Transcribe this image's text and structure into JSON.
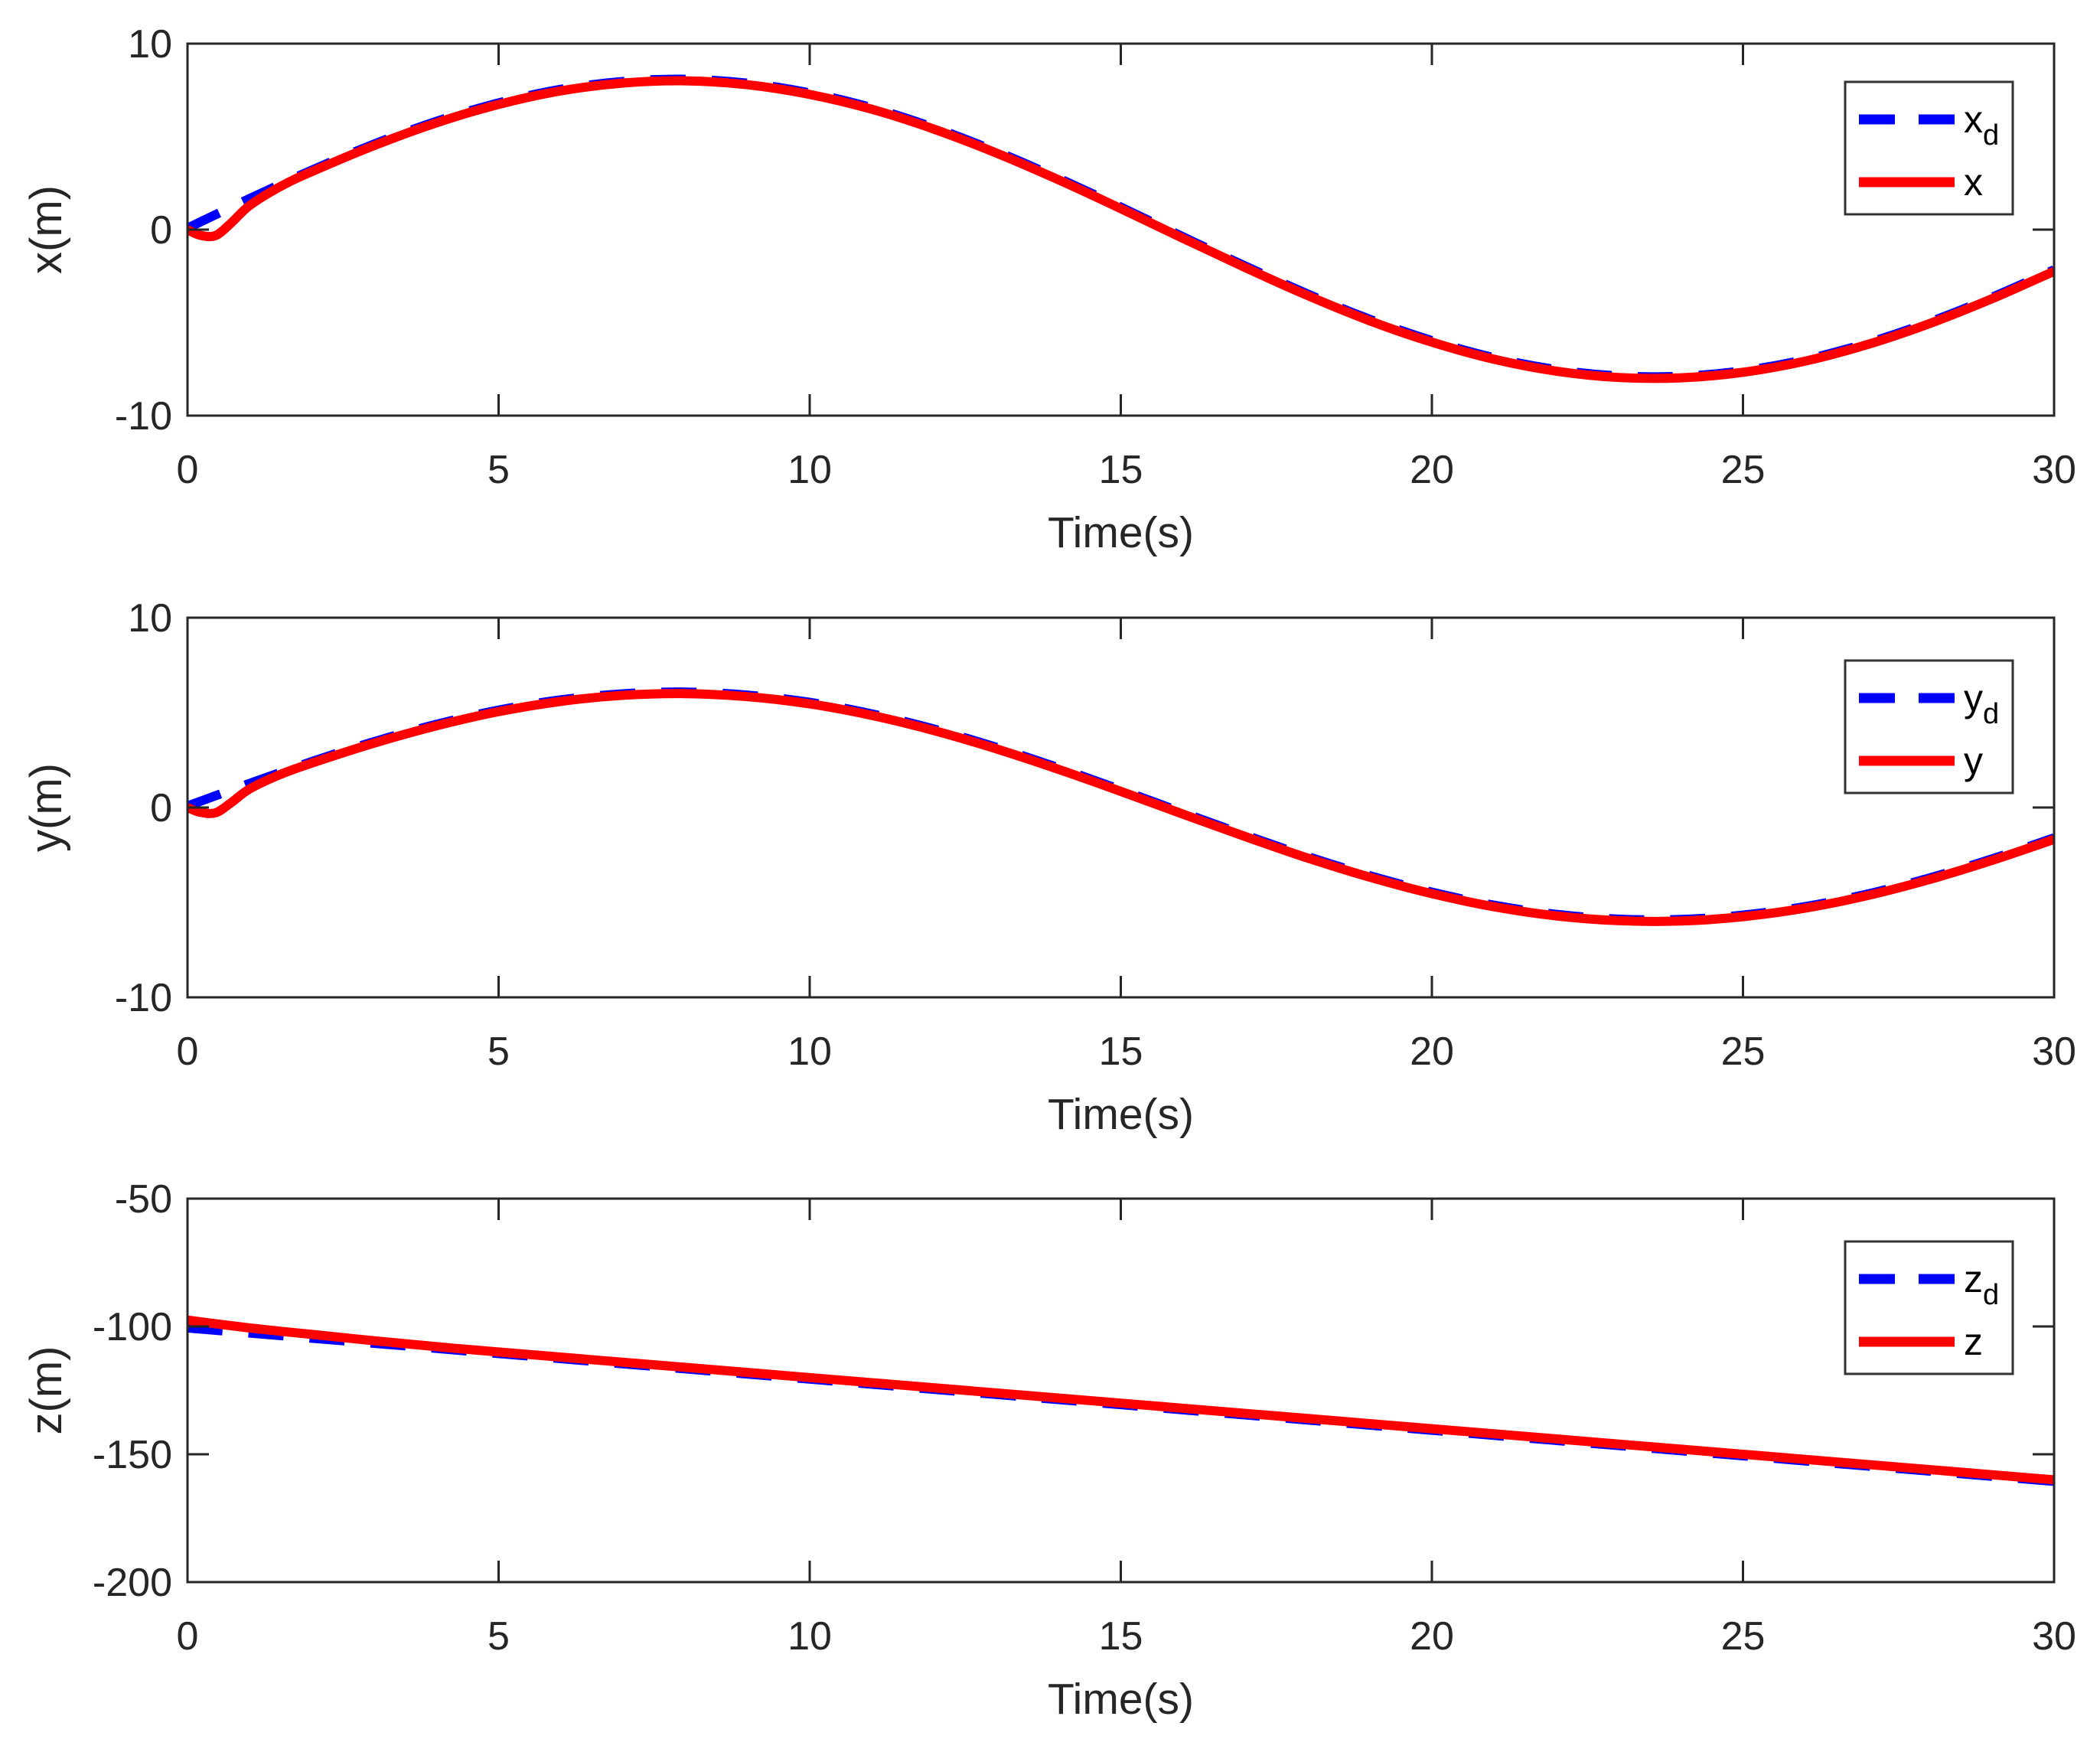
{
  "figure": {
    "background": "#FFFFFF",
    "description": "Position tracking: desired vs actual trajectories in x, y, z over time"
  },
  "colors": {
    "desired_line": "#0000FF",
    "actual_line": "#FF0000",
    "axis": "#262626",
    "legend_border": "#333333",
    "label_text": "#262626"
  },
  "chart_data": [
    {
      "type": "line",
      "id": "x",
      "xlabel": "Time(s)",
      "ylabel": "x(m)",
      "xlim": [
        0,
        30
      ],
      "ylim": [
        -10,
        10
      ],
      "xticks": [
        0,
        5,
        10,
        15,
        20,
        25,
        30
      ],
      "xtick_labels": [
        "0",
        "5",
        "10",
        "15",
        "20",
        "25",
        "30"
      ],
      "yticks": [
        10,
        0,
        -10
      ],
      "ytick_labels": [
        "10",
        "0",
        "-10"
      ],
      "grid": false,
      "legend_position": "northeast-inset",
      "legend": [
        {
          "label": "x",
          "subscript": "d",
          "color": "#0000FF",
          "style": "dashed"
        },
        {
          "label": "x",
          "subscript": "",
          "color": "#FF0000",
          "style": "solid"
        }
      ],
      "series": [
        {
          "name": "x_d",
          "color": "#0000FF",
          "style": "dashed",
          "points": [
            [
              0,
              0
            ],
            [
              1,
              1.59
            ],
            [
              2,
              3.12
            ],
            [
              3,
              4.52
            ],
            [
              4,
              5.74
            ],
            [
              5,
              6.73
            ],
            [
              6,
              7.46
            ],
            [
              7,
              7.88
            ],
            [
              8,
              8.0
            ],
            [
              9,
              7.79
            ],
            [
              10,
              7.27
            ],
            [
              11,
              6.47
            ],
            [
              12,
              5.4
            ],
            [
              13,
              4.12
            ],
            [
              14,
              2.68
            ],
            [
              15,
              1.13
            ],
            [
              16,
              -0.47
            ],
            [
              17,
              -2.04
            ],
            [
              18,
              -3.54
            ],
            [
              19,
              -4.9
            ],
            [
              20,
              -6.05
            ],
            [
              21,
              -6.97
            ],
            [
              22,
              -7.61
            ],
            [
              23,
              -7.95
            ],
            [
              24,
              -7.97
            ],
            [
              25,
              -7.67
            ],
            [
              26,
              -7.07
            ],
            [
              27,
              -6.18
            ],
            [
              28,
              -5.05
            ],
            [
              29,
              -3.72
            ],
            [
              30,
              -2.24
            ]
          ]
        },
        {
          "name": "x",
          "color": "#FF0000",
          "style": "solid",
          "points": [
            [
              0,
              0
            ],
            [
              0.2,
              -0.3
            ],
            [
              0.45,
              -0.32
            ],
            [
              0.7,
              0.35
            ],
            [
              1,
              1.3
            ],
            [
              1.5,
              2.33
            ],
            [
              2,
              3.12
            ],
            [
              3,
              4.52
            ],
            [
              4,
              5.74
            ],
            [
              5,
              6.73
            ],
            [
              6,
              7.46
            ],
            [
              7,
              7.88
            ],
            [
              8,
              8.0
            ],
            [
              9,
              7.79
            ],
            [
              10,
              7.27
            ],
            [
              11,
              6.47
            ],
            [
              12,
              5.4
            ],
            [
              13,
              4.12
            ],
            [
              14,
              2.68
            ],
            [
              15,
              1.13
            ],
            [
              16,
              -0.47
            ],
            [
              17,
              -2.04
            ],
            [
              18,
              -3.54
            ],
            [
              19,
              -4.9
            ],
            [
              20,
              -6.05
            ],
            [
              21,
              -6.97
            ],
            [
              22,
              -7.61
            ],
            [
              23,
              -7.95
            ],
            [
              24,
              -7.97
            ],
            [
              25,
              -7.67
            ],
            [
              26,
              -7.07
            ],
            [
              27,
              -6.18
            ],
            [
              28,
              -5.05
            ],
            [
              29,
              -3.72
            ],
            [
              30,
              -2.24
            ]
          ]
        }
      ]
    },
    {
      "type": "line",
      "id": "y",
      "xlabel": "Time(s)",
      "ylabel": "y(m)",
      "xlim": [
        0,
        30
      ],
      "ylim": [
        -10,
        10
      ],
      "xticks": [
        0,
        5,
        10,
        15,
        20,
        25,
        30
      ],
      "xtick_labels": [
        "0",
        "5",
        "10",
        "15",
        "20",
        "25",
        "30"
      ],
      "yticks": [
        10,
        0,
        -10
      ],
      "ytick_labels": [
        "10",
        "0",
        "-10"
      ],
      "grid": false,
      "legend_position": "northeast-inset",
      "legend": [
        {
          "label": "y",
          "subscript": "d",
          "color": "#0000FF",
          "style": "dashed"
        },
        {
          "label": "y",
          "subscript": "",
          "color": "#FF0000",
          "style": "solid"
        }
      ],
      "series": [
        {
          "name": "y_d",
          "color": "#0000FF",
          "style": "dashed",
          "points": [
            [
              0,
              0
            ],
            [
              1,
              1.19
            ],
            [
              2,
              2.34
            ],
            [
              3,
              3.39
            ],
            [
              4,
              4.3
            ],
            [
              5,
              5.05
            ],
            [
              6,
              5.59
            ],
            [
              7,
              5.91
            ],
            [
              8,
              6.0
            ],
            [
              9,
              5.84
            ],
            [
              10,
              5.46
            ],
            [
              11,
              4.85
            ],
            [
              12,
              4.05
            ],
            [
              13,
              3.09
            ],
            [
              14,
              2.01
            ],
            [
              15,
              0.85
            ],
            [
              16,
              -0.35
            ],
            [
              17,
              -1.53
            ],
            [
              18,
              -2.66
            ],
            [
              19,
              -3.67
            ],
            [
              20,
              -4.54
            ],
            [
              21,
              -5.23
            ],
            [
              22,
              -5.71
            ],
            [
              23,
              -5.96
            ],
            [
              24,
              -5.98
            ],
            [
              25,
              -5.75
            ],
            [
              26,
              -5.3
            ],
            [
              27,
              -4.64
            ],
            [
              28,
              -3.79
            ],
            [
              29,
              -2.79
            ],
            [
              30,
              -1.68
            ]
          ]
        },
        {
          "name": "y",
          "color": "#FF0000",
          "style": "solid",
          "points": [
            [
              0,
              0
            ],
            [
              0.2,
              -0.25
            ],
            [
              0.45,
              -0.28
            ],
            [
              0.7,
              0.25
            ],
            [
              1,
              0.98
            ],
            [
              1.5,
              1.75
            ],
            [
              2,
              2.34
            ],
            [
              3,
              3.39
            ],
            [
              4,
              4.3
            ],
            [
              5,
              5.05
            ],
            [
              6,
              5.59
            ],
            [
              7,
              5.91
            ],
            [
              8,
              6.0
            ],
            [
              9,
              5.84
            ],
            [
              10,
              5.46
            ],
            [
              11,
              4.85
            ],
            [
              12,
              4.05
            ],
            [
              13,
              3.09
            ],
            [
              14,
              2.01
            ],
            [
              15,
              0.85
            ],
            [
              16,
              -0.35
            ],
            [
              17,
              -1.53
            ],
            [
              18,
              -2.66
            ],
            [
              19,
              -3.67
            ],
            [
              20,
              -4.54
            ],
            [
              21,
              -5.23
            ],
            [
              22,
              -5.71
            ],
            [
              23,
              -5.96
            ],
            [
              24,
              -5.98
            ],
            [
              25,
              -5.75
            ],
            [
              26,
              -5.3
            ],
            [
              27,
              -4.64
            ],
            [
              28,
              -3.79
            ],
            [
              29,
              -2.79
            ],
            [
              30,
              -1.68
            ]
          ]
        }
      ]
    },
    {
      "type": "line",
      "id": "z",
      "xlabel": "Time(s)",
      "ylabel": "z(m)",
      "xlim": [
        0,
        30
      ],
      "ylim": [
        -200,
        -50
      ],
      "xticks": [
        0,
        5,
        10,
        15,
        20,
        25,
        30
      ],
      "xtick_labels": [
        "0",
        "5",
        "10",
        "15",
        "20",
        "25",
        "30"
      ],
      "yticks": [
        -50,
        -100,
        -150,
        -200
      ],
      "ytick_labels": [
        "-50",
        "-100",
        "-150",
        "-200"
      ],
      "grid": false,
      "legend_position": "northeast-inset",
      "legend": [
        {
          "label": "z",
          "subscript": "d",
          "color": "#0000FF",
          "style": "dashed"
        },
        {
          "label": "z",
          "subscript": "",
          "color": "#FF0000",
          "style": "solid"
        }
      ],
      "series": [
        {
          "name": "z_d",
          "color": "#0000FF",
          "style": "dashed",
          "points": [
            [
              0,
              -100
            ],
            [
              2.5,
              -105
            ],
            [
              5,
              -110
            ],
            [
              7.5,
              -115
            ],
            [
              10,
              -120
            ],
            [
              12.5,
              -125
            ],
            [
              15,
              -130
            ],
            [
              17.5,
              -135
            ],
            [
              20,
              -140
            ],
            [
              22.5,
              -145
            ],
            [
              25,
              -150
            ],
            [
              27.5,
              -155
            ],
            [
              30,
              -160
            ]
          ]
        },
        {
          "name": "z",
          "color": "#FF0000",
          "style": "solid",
          "points": [
            [
              0,
              -97.5
            ],
            [
              0.5,
              -99.1
            ],
            [
              1,
              -100.6
            ],
            [
              1.5,
              -101.9
            ],
            [
              2,
              -103.1
            ],
            [
              3,
              -105.6
            ],
            [
              4,
              -107.9
            ],
            [
              5,
              -110
            ],
            [
              7.5,
              -115
            ],
            [
              10,
              -120
            ],
            [
              12.5,
              -125
            ],
            [
              15,
              -130
            ],
            [
              17.5,
              -135
            ],
            [
              20,
              -140
            ],
            [
              22.5,
              -145
            ],
            [
              25,
              -150
            ],
            [
              27.5,
              -155
            ],
            [
              30,
              -160
            ]
          ]
        }
      ]
    }
  ]
}
